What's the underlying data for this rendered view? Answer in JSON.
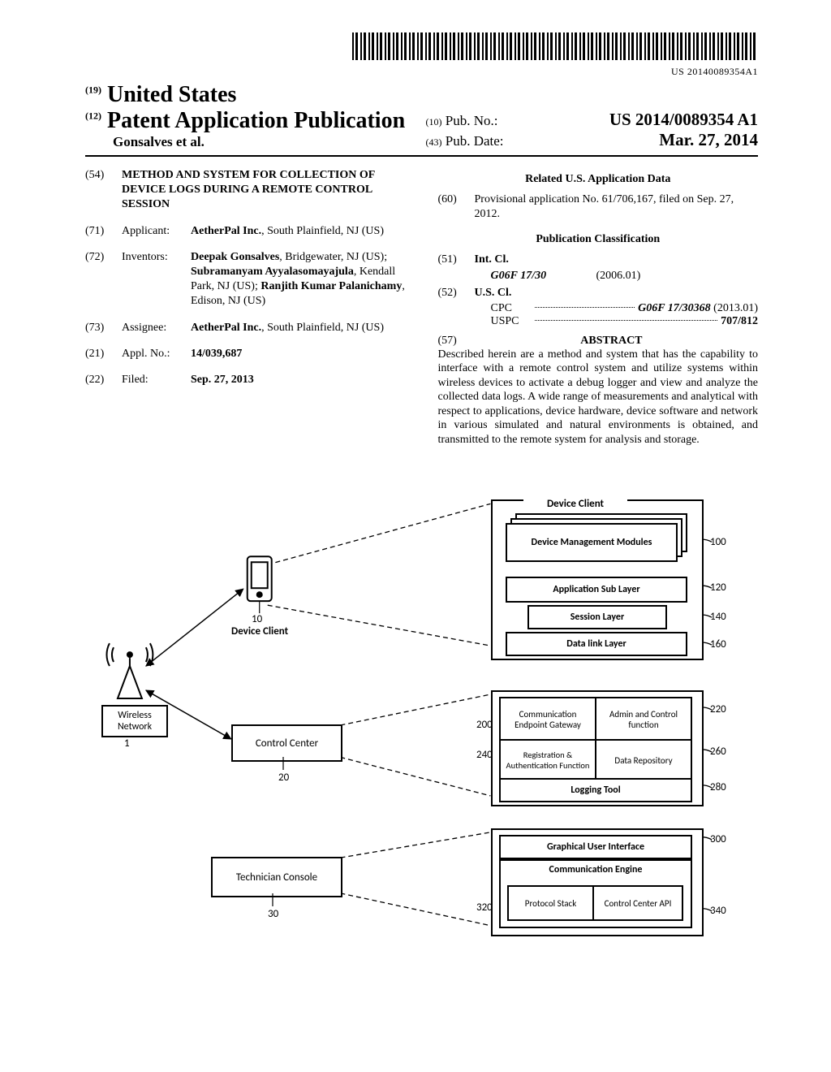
{
  "barcode_number": "US 20140089354A1",
  "header": {
    "country_code": "(19)",
    "country": "United States",
    "kind_code": "(12)",
    "kind": "Patent Application Publication",
    "authors": "Gonsalves et al.",
    "pubno_code": "(10)",
    "pubno_label": "Pub. No.:",
    "pubno": "US 2014/0089354 A1",
    "pubdate_code": "(43)",
    "pubdate_label": "Pub. Date:",
    "pubdate": "Mar. 27, 2014"
  },
  "fields": {
    "title_code": "(54)",
    "title": "METHOD AND SYSTEM FOR COLLECTION OF DEVICE LOGS DURING A REMOTE CONTROL SESSION",
    "applicant_code": "(71)",
    "applicant_label": "Applicant:",
    "applicant_body_strong": "AetherPal Inc.",
    "applicant_body_rest": ", South Plainfield, NJ (US)",
    "inventors_code": "(72)",
    "inventors_label": "Inventors:",
    "inventors_html": "Deepak Gonsalves|, Bridgewater, NJ (US); |Subramanyam Ayyalasomayajula|, Kendall Park, NJ (US); |Ranjith Kumar Palanichamy|, Edison, NJ (US)",
    "assignee_code": "(73)",
    "assignee_label": "Assignee:",
    "assignee_strong": "AetherPal Inc.",
    "assignee_rest": ", South Plainfield, NJ (US)",
    "applno_code": "(21)",
    "applno_label": "Appl. No.:",
    "applno": "14/039,687",
    "filed_code": "(22)",
    "filed_label": "Filed:",
    "filed": "Sep. 27, 2013"
  },
  "related": {
    "heading": "Related U.S. Application Data",
    "code": "(60)",
    "text": "Provisional application No. 61/706,167, filed on Sep. 27, 2012."
  },
  "classification": {
    "heading": "Publication Classification",
    "intcl_code": "(51)",
    "intcl_label": "Int. Cl.",
    "intcl_symbol": "G06F 17/30",
    "intcl_date": "(2006.01)",
    "uscl_code": "(52)",
    "uscl_label": "U.S. Cl.",
    "cpc_label": "CPC",
    "cpc_value": "G06F 17/30368",
    "cpc_date": "(2013.01)",
    "uspc_label": "USPC",
    "uspc_value": "707/812"
  },
  "abstract": {
    "code": "(57)",
    "heading": "ABSTRACT",
    "text": "Described herein are a method and system that has the capability to interface with a remote control system and utilize systems within wireless devices to activate a debug logger and view and analyze the collected data logs. A wide range of measurements and analytical with respect to applications, device hardware, device software and network in various simulated and natural environments is obtained, and transmitted to the remote system for analysis and storage."
  },
  "diagram": {
    "wireless_network": "Wireless Network",
    "device_client_label": "Device Client",
    "ref_10": "10",
    "control_center": "Control Center",
    "ref_20": "20",
    "tech_console": "Technician Console",
    "ref_30": "30",
    "ref_1": "1",
    "dc_top": "Device Client",
    "dm_modules": "Device Management Modules",
    "ref_100": "100",
    "app_sub": "Application Sub Layer",
    "ref_120": "120",
    "session": "Session Layer",
    "ref_140": "140",
    "datalink": "Data link Layer",
    "ref_160": "160",
    "comm_ep": "Communication Endpoint Gateway",
    "admin_ctrl": "Admin and Control function",
    "ref_200": "200",
    "ref_220": "220",
    "reg_auth": "Registration & Authentication Function",
    "data_repo": "Data Repository",
    "ref_240": "240",
    "ref_260": "260",
    "logging": "Logging Tool",
    "ref_280": "280",
    "gui": "Graphical User Interface",
    "ref_300": "300",
    "comm_engine": "Communication Engine",
    "proto_stack": "Protocol Stack",
    "cc_api": "Control Center API",
    "ref_320": "320",
    "ref_340": "340"
  }
}
